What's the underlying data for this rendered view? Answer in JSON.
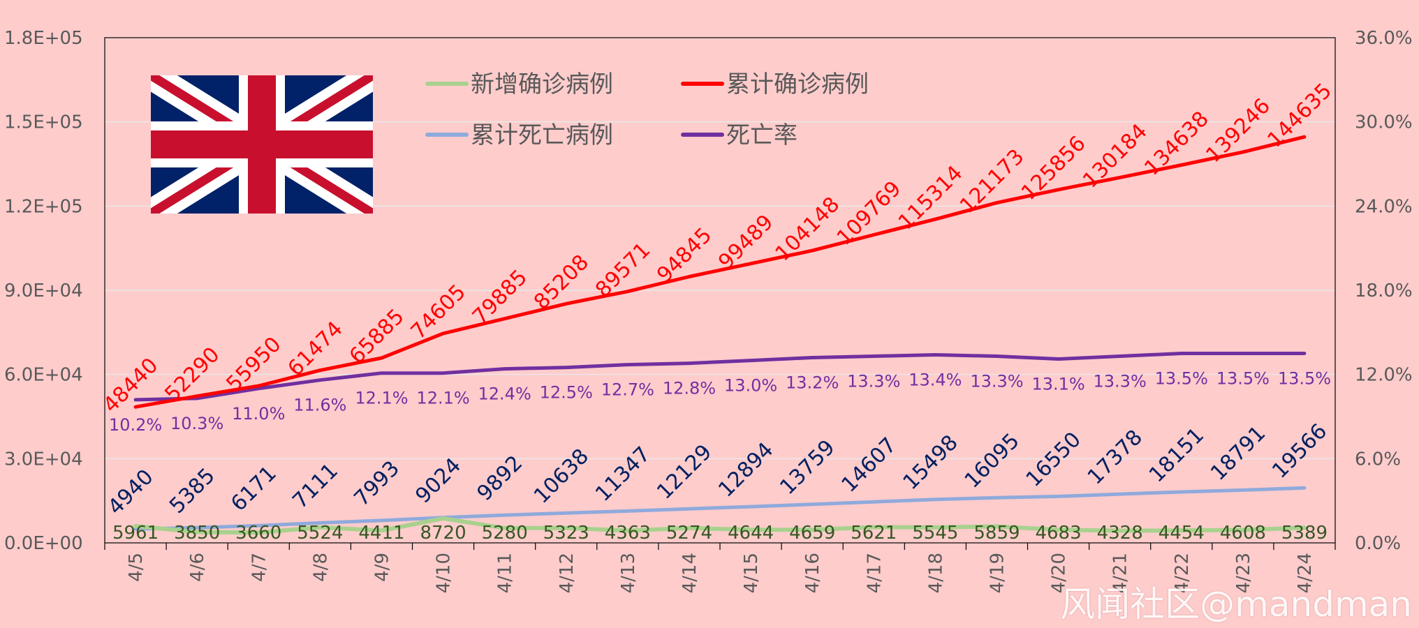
{
  "colors": {
    "background": "#ffcccc",
    "grid": "#e8e8e8",
    "axis": "#333333",
    "tick_text": "#595959",
    "new_cases": "#a9d18e",
    "new_cases_label": "#375623",
    "cumulative_cases": "#ff0000",
    "cumulative_deaths": "#8faadc",
    "deaths_label": "#002060",
    "death_rate": "#7030a0",
    "flag_blue": "#012169",
    "flag_red": "#c8102e",
    "flag_white": "#ffffff"
  },
  "watermark": "风闻社区@mandman",
  "flag": {
    "icon": "uk-flag-icon"
  },
  "chart_data": {
    "type": "line",
    "categories": [
      "4/5",
      "4/6",
      "4/7",
      "4/8",
      "4/9",
      "4/10",
      "4/11",
      "4/12",
      "4/13",
      "4/14",
      "4/15",
      "4/16",
      "4/17",
      "4/18",
      "4/19",
      "4/20",
      "4/21",
      "4/22",
      "4/23",
      "4/24"
    ],
    "left_axis": {
      "ylim": [
        0,
        180000
      ],
      "ticks": [
        0,
        30000,
        60000,
        90000,
        120000,
        150000,
        180000
      ],
      "tick_labels": [
        "0.0E+00",
        "3.0E+04",
        "6.0E+04",
        "9.0E+04",
        "1.2E+05",
        "1.5E+05",
        "1.8E+05"
      ]
    },
    "right_axis": {
      "ylim": [
        0,
        36
      ],
      "ticks": [
        0,
        6,
        12,
        18,
        24,
        30,
        36
      ],
      "tick_labels": [
        "0.0%",
        "6.0%",
        "12.0%",
        "18.0%",
        "24.0%",
        "30.0%",
        "36.0%"
      ]
    },
    "grid": true,
    "legend": {
      "placement": "top-center"
    },
    "series": [
      {
        "key": "new_cases",
        "name": "新增确诊病例",
        "axis": "left",
        "values": [
          5961,
          3850,
          3660,
          5524,
          4411,
          8720,
          5280,
          5323,
          4363,
          5274,
          4644,
          4659,
          5621,
          5545,
          5859,
          4683,
          4328,
          4454,
          4608,
          5389
        ],
        "labels": [
          "5961",
          "3850",
          "3660",
          "5524",
          "4411",
          "8720",
          "5280",
          "5323",
          "4363",
          "5274",
          "4644",
          "4659",
          "5621",
          "5545",
          "5859",
          "4683",
          "4328",
          "4454",
          "4608",
          "5389"
        ]
      },
      {
        "key": "cumulative_cases",
        "name": "累计确诊病例",
        "axis": "left",
        "values": [
          48440,
          52290,
          55950,
          61474,
          65885,
          74605,
          79885,
          85208,
          89571,
          94845,
          99489,
          104148,
          109769,
          115314,
          121173,
          125856,
          130184,
          134638,
          139246,
          144635
        ],
        "labels": [
          "48440",
          "52290",
          "55950",
          "61474",
          "65885",
          "74605",
          "79885",
          "85208",
          "89571",
          "94845",
          "99489",
          "104148",
          "109769",
          "115314",
          "121173",
          "125856",
          "130184",
          "134638",
          "139246",
          "144635"
        ]
      },
      {
        "key": "cumulative_deaths",
        "name": "累计死亡病例",
        "axis": "left",
        "values": [
          4940,
          5385,
          6171,
          7111,
          7993,
          9024,
          9892,
          10638,
          11347,
          12129,
          12894,
          13759,
          14607,
          15498,
          16095,
          16550,
          17378,
          18151,
          18791,
          19566
        ],
        "labels": [
          "4940",
          "5385",
          "6171",
          "7111",
          "7993",
          "9024",
          "9892",
          "10638",
          "11347",
          "12129",
          "12894",
          "13759",
          "14607",
          "15498",
          "16095",
          "16550",
          "17378",
          "18151",
          "18791",
          "19566"
        ]
      },
      {
        "key": "death_rate",
        "name": "死亡率",
        "axis": "right",
        "values": [
          10.2,
          10.3,
          11.0,
          11.6,
          12.1,
          12.1,
          12.4,
          12.5,
          12.7,
          12.8,
          13.0,
          13.2,
          13.3,
          13.4,
          13.3,
          13.1,
          13.3,
          13.5,
          13.5,
          13.5
        ],
        "labels": [
          "10.2%",
          "10.3%",
          "11.0%",
          "11.6%",
          "12.1%",
          "12.1%",
          "12.4%",
          "12.5%",
          "12.7%",
          "12.8%",
          "13.0%",
          "13.2%",
          "13.3%",
          "13.4%",
          "13.3%",
          "13.1%",
          "13.3%",
          "13.5%",
          "13.5%",
          "13.5%"
        ]
      }
    ]
  }
}
